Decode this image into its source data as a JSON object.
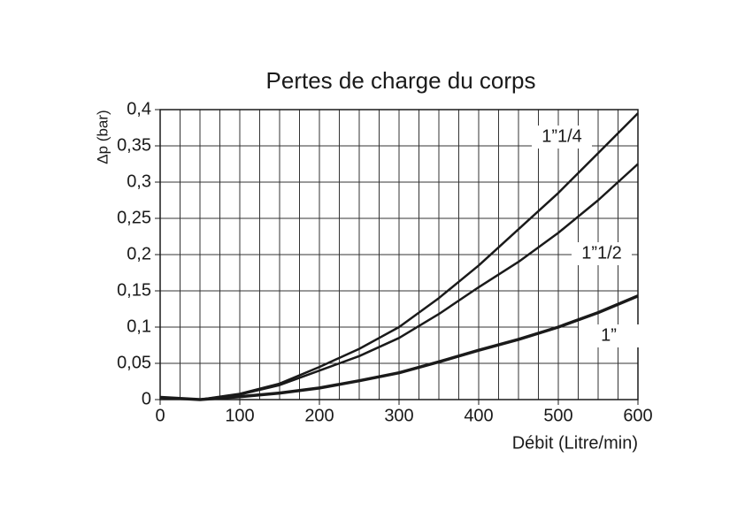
{
  "chart_data": {
    "type": "line",
    "title": "Pertes de charge du corps",
    "x_label": "Débit (Litre/min)",
    "y_label": "Δp (bar)",
    "x": [
      0,
      50,
      100,
      150,
      200,
      250,
      300,
      350,
      400,
      450,
      500,
      550,
      600
    ],
    "series": [
      {
        "name": "1”1/4",
        "color": "#1a1a1a",
        "values": [
          0.003,
          0,
          0.008,
          0.022,
          0.045,
          0.07,
          0.1,
          0.14,
          0.185,
          0.235,
          0.285,
          0.34,
          0.395
        ]
      },
      {
        "name": "1”1/2",
        "color": "#1a1a1a",
        "values": [
          0.003,
          0,
          0.007,
          0.02,
          0.04,
          0.06,
          0.085,
          0.118,
          0.155,
          0.19,
          0.23,
          0.275,
          0.325
        ]
      },
      {
        "name": "1”",
        "color": "#1a1a1a",
        "values": [
          0.003,
          0,
          0.004,
          0.009,
          0.016,
          0.026,
          0.037,
          0.052,
          0.068,
          0.083,
          0.1,
          0.12,
          0.143
        ]
      }
    ],
    "xlim": [
      0,
      600
    ],
    "ylim": [
      0,
      0.4
    ],
    "xticks": [
      0,
      100,
      200,
      300,
      400,
      500,
      600
    ],
    "x_grid": [
      0,
      25,
      50,
      75,
      100,
      125,
      150,
      175,
      200,
      225,
      250,
      275,
      300,
      325,
      350,
      375,
      400,
      425,
      450,
      475,
      500,
      525,
      550,
      575,
      600
    ],
    "yticks": [
      {
        "value": 0,
        "label": "0"
      },
      {
        "value": 0.05,
        "label": "0,05"
      },
      {
        "value": 0.1,
        "label": "0,1"
      },
      {
        "value": 0.15,
        "label": "0,15"
      },
      {
        "value": 0.2,
        "label": "0,2"
      },
      {
        "value": 0.25,
        "label": "0,25"
      },
      {
        "value": 0.3,
        "label": "0,3"
      },
      {
        "value": 0.35,
        "label": "0,35"
      },
      {
        "value": 0.4,
        "label": "0,4"
      }
    ],
    "grid": true
  }
}
